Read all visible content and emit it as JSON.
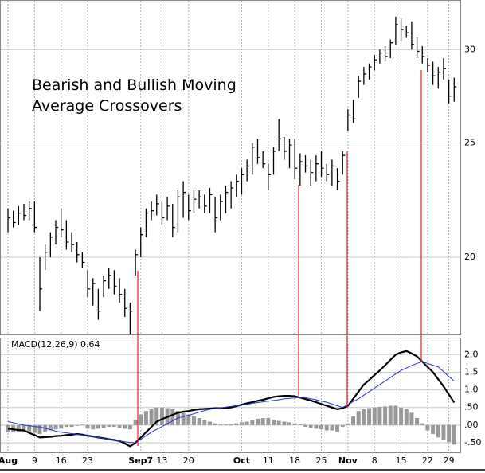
{
  "chart_data": [
    {
      "type": "ohlc",
      "annotation": [
        "Bearish and Bullish Moving",
        "Average Crossovers"
      ],
      "categories": [
        "Aug",
        null,
        null,
        null,
        null,
        "9",
        null,
        null,
        null,
        null,
        "16",
        null,
        null,
        null,
        null,
        "23",
        null,
        null,
        null,
        null,
        null,
        null,
        null,
        null,
        null,
        "Sep7",
        null,
        null,
        null,
        "13",
        null,
        null,
        null,
        null,
        "20",
        null,
        null,
        null,
        null,
        null,
        null,
        null,
        null,
        null,
        "Oct",
        null,
        null,
        null,
        null,
        "11",
        null,
        null,
        null,
        null,
        "18",
        null,
        null,
        null,
        null,
        "25",
        null,
        null,
        null,
        null,
        "Nov",
        null,
        null,
        null,
        null,
        "8",
        null,
        null,
        null,
        null,
        "15",
        null,
        null,
        null,
        null,
        "22",
        null,
        null,
        null,
        "29",
        null
      ],
      "high": [
        22.0,
        21.9,
        22.1,
        22.2,
        22.3,
        22.3,
        20.0,
        20.5,
        21.0,
        21.5,
        22.0,
        21.5,
        21.0,
        20.6,
        20.2,
        19.5,
        19.2,
        18.8,
        19.3,
        19.6,
        19.5,
        19.2,
        18.8,
        18.3,
        20.3,
        21.2,
        22.0,
        22.3,
        22.6,
        22.3,
        22.5,
        22.2,
        22.8,
        23.2,
        22.6,
        22.8,
        22.8,
        22.6,
        22.9,
        22.5,
        22.6,
        23.0,
        23.2,
        23.5,
        23.8,
        24.2,
        25.0,
        25.2,
        24.6,
        24.0,
        24.8,
        26.2,
        25.3,
        25.2,
        25.2,
        24.5,
        24.4,
        24.2,
        24.4,
        24.6,
        24.0,
        24.2,
        23.8,
        24.6,
        26.7,
        27.2,
        28.5,
        29.0,
        29.2,
        29.7,
        30.0,
        30.2,
        30.6,
        32.0,
        31.9,
        31.4,
        31.7,
        30.7,
        30.2,
        29.5,
        29.3,
        29.0,
        29.5,
        28.3,
        28.4
      ],
      "low": [
        21.0,
        21.2,
        21.3,
        21.5,
        21.5,
        21.0,
        18.0,
        19.5,
        20.0,
        20.5,
        20.8,
        20.3,
        20.2,
        19.8,
        19.6,
        18.5,
        18.2,
        17.7,
        18.5,
        18.8,
        18.6,
        18.3,
        17.8,
        17.2,
        19.3,
        20.0,
        20.8,
        21.5,
        21.7,
        21.3,
        21.5,
        20.8,
        21.0,
        21.6,
        21.5,
        21.8,
        22.0,
        21.8,
        21.8,
        21.0,
        21.5,
        21.8,
        22.0,
        22.5,
        22.6,
        23.2,
        23.5,
        24.0,
        23.8,
        22.8,
        23.5,
        24.6,
        24.2,
        23.8,
        23.3,
        23.0,
        23.6,
        23.0,
        23.2,
        23.4,
        23.2,
        23.0,
        22.8,
        23.5,
        25.6,
        26.0,
        27.3,
        28.0,
        28.3,
        28.8,
        29.2,
        29.3,
        29.5,
        30.3,
        30.5,
        30.7,
        30.0,
        29.5,
        29.2,
        28.7,
        28.0,
        27.8,
        28.3,
        27.0,
        27.1
      ],
      "close": [
        21.6,
        21.4,
        21.8,
        21.7,
        22.0,
        21.2,
        18.8,
        20.2,
        20.8,
        21.2,
        21.1,
        20.6,
        20.5,
        20.1,
        19.8,
        18.8,
        19.0,
        18.0,
        19.1,
        19.3,
        18.9,
        18.6,
        18.1,
        18.0,
        20.1,
        20.9,
        21.8,
        21.9,
        22.2,
        21.6,
        22.1,
        21.2,
        22.5,
        22.7,
        21.9,
        22.4,
        22.5,
        22.1,
        22.6,
        21.6,
        22.3,
        22.7,
        22.9,
        23.2,
        23.5,
        23.9,
        24.8,
        24.3,
        24.0,
        23.5,
        24.6,
        25.2,
        24.6,
        24.9,
        23.8,
        24.1,
        23.9,
        23.6,
        24.0,
        23.8,
        23.5,
        23.9,
        23.2,
        24.4,
        26.4,
        26.2,
        28.2,
        28.6,
        29.0,
        29.4,
        29.8,
        29.6,
        30.4,
        31.5,
        31.2,
        31.0,
        30.3,
        29.9,
        29.6,
        29.1,
        28.5,
        28.7,
        28.9,
        27.4,
        27.9
      ],
      "color": "#000000",
      "log_scale": true,
      "grid": true,
      "ylim": [
        17.2,
        33
      ],
      "yticks": [
        20,
        25,
        30
      ]
    },
    {
      "type": "macd",
      "label": "MACD(12,26,9) 0.64",
      "series": [
        {
          "kind": "line",
          "color": "#000000",
          "values": [
            -0.1,
            -0.12,
            -0.14,
            -0.15,
            -0.22,
            -0.28,
            -0.35,
            -0.34,
            -0.33,
            -0.31,
            -0.3,
            -0.28,
            -0.27,
            -0.25,
            -0.27,
            -0.3,
            -0.32,
            -0.35,
            -0.37,
            -0.4,
            -0.42,
            -0.45,
            -0.52,
            -0.6,
            -0.5,
            -0.35,
            -0.2,
            -0.05,
            0.1,
            0.17,
            0.23,
            0.29,
            0.35,
            0.38,
            0.4,
            0.43,
            0.45,
            0.46,
            0.47,
            0.48,
            0.48,
            0.49,
            0.5,
            0.54,
            0.58,
            0.62,
            0.65,
            0.69,
            0.72,
            0.76,
            0.8,
            0.82,
            0.83,
            0.83,
            0.82,
            0.78,
            0.74,
            0.7,
            0.65,
            0.6,
            0.55,
            0.5,
            0.45,
            0.48,
            0.55,
            0.75,
            0.95,
            1.15,
            1.28,
            1.42,
            1.55,
            1.7,
            1.85,
            2.0,
            2.06,
            2.1,
            2.03,
            1.95,
            1.8,
            1.65,
            1.5,
            1.3,
            1.1,
            0.87,
            0.64
          ]
        },
        {
          "kind": "line",
          "color": "#2233dd",
          "values": [
            0.1,
            0.07,
            0.03,
            0.0,
            -0.02,
            -0.04,
            -0.05,
            -0.09,
            -0.13,
            -0.17,
            -0.2,
            -0.22,
            -0.24,
            -0.26,
            -0.28,
            -0.3,
            -0.32,
            -0.35,
            -0.38,
            -0.4,
            -0.42,
            -0.45,
            -0.47,
            -0.49,
            -0.5,
            -0.4,
            -0.3,
            -0.2,
            -0.12,
            -0.04,
            0.04,
            0.12,
            0.2,
            0.24,
            0.28,
            0.32,
            0.37,
            0.41,
            0.45,
            0.47,
            0.49,
            0.51,
            0.53,
            0.55,
            0.57,
            0.59,
            0.62,
            0.64,
            0.66,
            0.68,
            0.7,
            0.72,
            0.75,
            0.76,
            0.77,
            0.78,
            0.78,
            0.75,
            0.72,
            0.68,
            0.65,
            0.6,
            0.55,
            0.5,
            0.58,
            0.67,
            0.75,
            0.85,
            0.95,
            1.05,
            1.15,
            1.25,
            1.35,
            1.45,
            1.55,
            1.62,
            1.69,
            1.75,
            1.8,
            1.75,
            1.7,
            1.65,
            1.52,
            1.38,
            1.25
          ]
        },
        {
          "kind": "bar",
          "color": "#999999",
          "values": [
            -0.2,
            -0.2,
            -0.18,
            -0.15,
            -0.18,
            -0.22,
            -0.25,
            -0.2,
            -0.15,
            -0.12,
            -0.1,
            -0.05,
            -0.05,
            -0.02,
            0.02,
            -0.1,
            -0.12,
            -0.1,
            -0.08,
            -0.05,
            -0.05,
            -0.08,
            -0.1,
            -0.12,
            0.15,
            0.3,
            0.4,
            0.45,
            0.5,
            0.5,
            0.48,
            0.45,
            0.4,
            0.35,
            0.3,
            0.25,
            0.2,
            0.15,
            0.1,
            0.05,
            0.03,
            0.02,
            0.02,
            0.05,
            0.08,
            0.1,
            0.15,
            0.18,
            0.2,
            0.2,
            0.15,
            0.12,
            0.1,
            0.08,
            0.05,
            0.02,
            -0.05,
            -0.08,
            -0.1,
            -0.12,
            -0.15,
            -0.15,
            -0.18,
            -0.05,
            0.05,
            0.25,
            0.4,
            0.45,
            0.48,
            0.5,
            0.52,
            0.53,
            0.55,
            0.55,
            0.5,
            0.45,
            0.35,
            0.2,
            0.05,
            -0.15,
            -0.25,
            -0.35,
            -0.42,
            -0.48,
            -0.55
          ]
        }
      ],
      "grid": true,
      "ylim": [
        -0.77,
        2.48
      ],
      "yticks": [
        {
          "value": 2,
          "label": "2.0"
        },
        {
          "value": 1.5,
          "label": "1.5"
        },
        {
          "value": 1,
          "label": "1.0"
        },
        {
          "value": 0.5,
          "label": ".50"
        },
        {
          "value": 0,
          "label": ".00"
        },
        {
          "value": -0.5,
          "label": "-.50"
        }
      ]
    }
  ]
}
